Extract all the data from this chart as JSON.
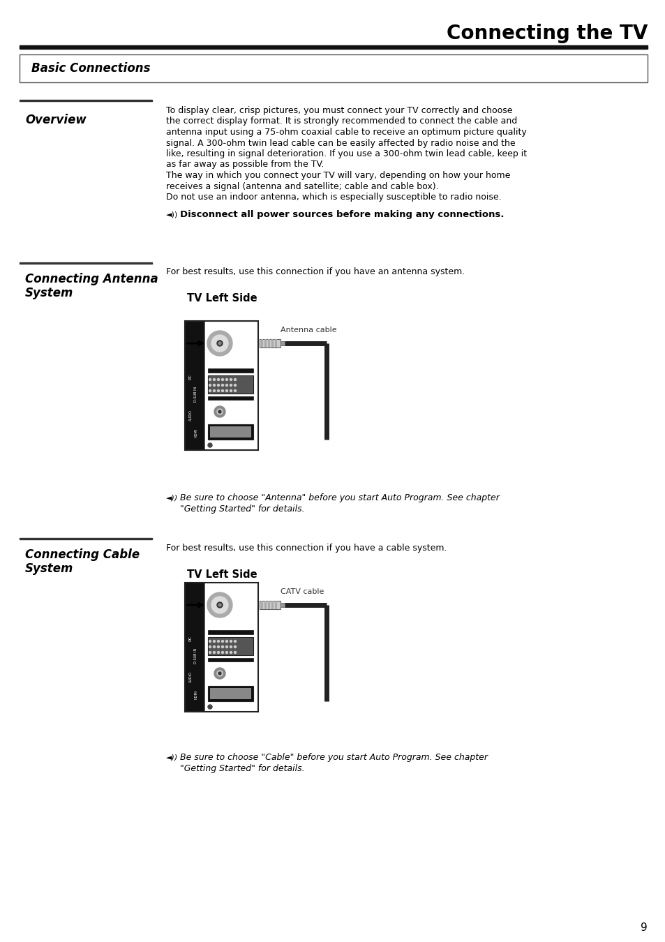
{
  "title": "Connecting the TV",
  "section_box_text": "Basic Connections",
  "overview_heading": "Overview",
  "overview_line1": "To display clear, crisp pictures, you must connect your TV correctly and choose",
  "overview_line2": "the correct display format. It is strongly recommended to connect the cable and",
  "overview_line3": "antenna input using a 75-ohm coaxial cable to receive an optimum picture quality",
  "overview_line4": "signal. A 300-ohm twin lead cable can be easily affected by radio noise and the",
  "overview_line5": "like, resulting in signal deterioration. If you use a 300-ohm twin lead cable, keep it",
  "overview_line6": "as far away as possible from the TV.",
  "overview_line7": "The way in which you connect your TV will vary, depending on how your home",
  "overview_line8": "receives a signal (antenna and satellite; cable and cable box).",
  "overview_line9": "Do not use an indoor antenna, which is especially susceptible to radio noise.",
  "overview_bold": "Disconnect all power sources before making any connections.",
  "antenna_heading_line1": "Connecting Antenna",
  "antenna_heading_line2": "System",
  "antenna_desc": "For best results, use this connection if you have an antenna system.",
  "antenna_tv_left": "TV Left Side",
  "antenna_cable_label": "Antenna cable",
  "antenna_note_line1": "Be sure to choose \"Antenna\" before you start Auto Program. See chapter",
  "antenna_note_line2": "\"Getting Started\" for details.",
  "cable_heading_line1": "Connecting Cable",
  "cable_heading_line2": "System",
  "cable_desc": "For best results, use this connection if you have a cable system.",
  "cable_tv_left": "TV Left Side",
  "cable_label": "CATV cable",
  "cable_note_line1": "Be sure to choose \"Cable\" before you start Auto Program. See chapter",
  "cable_note_line2": "\"Getting Started\" for details.",
  "page_number": "9",
  "bg_color": "#ffffff",
  "text_color": "#000000",
  "dark_bar_color": "#111111",
  "sep_line_color": "#333333",
  "box_border_color": "#555555",
  "panel_dark": "#111111",
  "panel_white": "#ffffff",
  "cable_dark": "#222222"
}
